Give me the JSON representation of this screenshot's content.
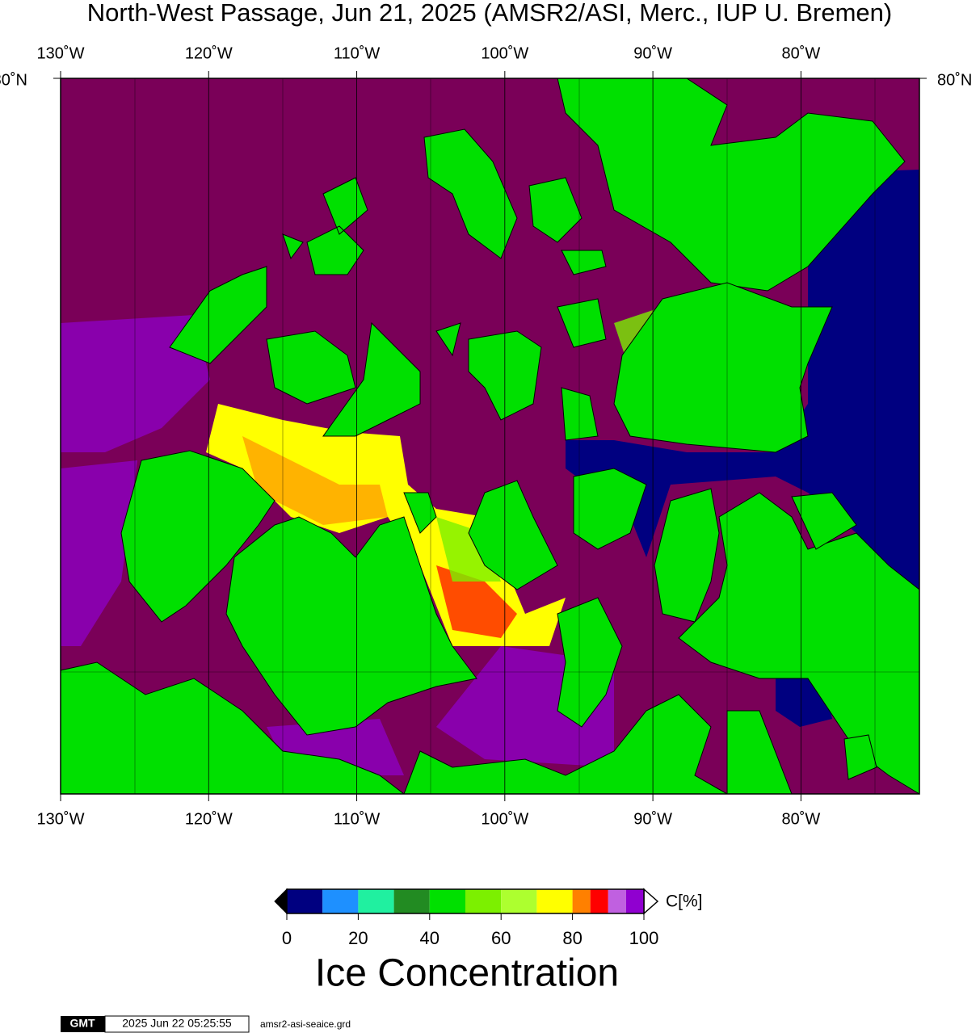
{
  "title": "North-West Passage, Jun 21, 2025 (AMSR2/ASI, Merc., IUP U. Bremen)",
  "map": {
    "xlim": [
      -130,
      -72
    ],
    "xticks": [
      {
        "value": -130,
        "label": "130˚W"
      },
      {
        "value": -120,
        "label": "120˚W"
      },
      {
        "value": -110,
        "label": "110˚W"
      },
      {
        "value": -100,
        "label": "100˚W"
      },
      {
        "value": -90,
        "label": "90˚W"
      },
      {
        "value": -80,
        "label": "80˚W"
      }
    ],
    "ylabel": "80˚N"
  },
  "colorbar": {
    "bounds": [
      0,
      10,
      20,
      30,
      40,
      50,
      60,
      70,
      80,
      85,
      90,
      95,
      100
    ],
    "colors": [
      "#000080",
      "#1e90ff",
      "#20f0a0",
      "#228b22",
      "#00e000",
      "#7cf000",
      "#adff2f",
      "#ffff00",
      "#ff8000",
      "#ff0000",
      "#c060e0",
      "#9000d0"
    ],
    "ticks": [
      0,
      20,
      40,
      60,
      80,
      100
    ],
    "unit": "C[%]",
    "title": "Ice Concentration"
  },
  "footer": {
    "logo": "GMT",
    "timestamp": "2025 Jun 22 05:25:55",
    "file": "amsr2-asi-seaice.grd"
  }
}
